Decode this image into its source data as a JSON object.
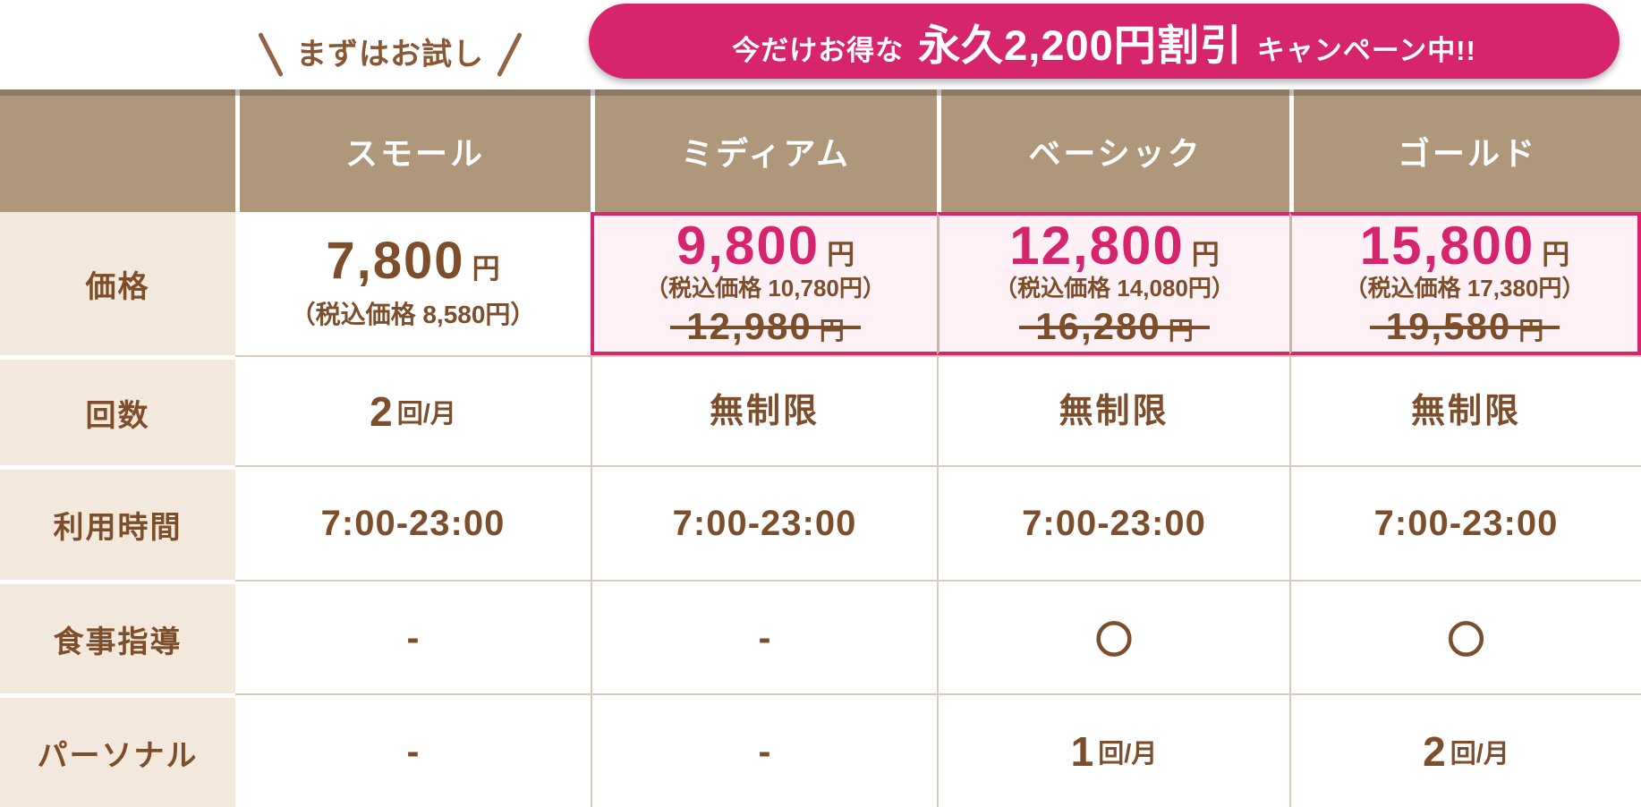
{
  "tryout": {
    "label": "まずはお試し"
  },
  "banner": {
    "prefix": "今だけお得な",
    "highlight": "永久2,200円割引",
    "suffix": "キャンペーン中!!"
  },
  "table": {
    "columns": [
      "スモール",
      "ミディアム",
      "ベーシック",
      "ゴールド"
    ],
    "row_labels": [
      "価格",
      "回数",
      "利用時間",
      "食事指導",
      "パーソナル"
    ],
    "plans": [
      {
        "name": "スモール",
        "highlighted": false,
        "price": "7,800",
        "price_unit": "円",
        "tax_note": "（税込価格 8,580円）",
        "count_num": "2",
        "count_unit": "回/月",
        "hours": "7:00-23:00",
        "meal": "-",
        "personal_num": "-",
        "personal_unit": ""
      },
      {
        "name": "ミディアム",
        "highlighted": true,
        "price": "9,800",
        "price_unit": "円",
        "tax_note": "（税込価格 10,780円）",
        "old_price": "12,980",
        "old_price_unit": "円",
        "count_num": "無制限",
        "count_unit": "",
        "hours": "7:00-23:00",
        "meal": "-",
        "personal_num": "-",
        "personal_unit": ""
      },
      {
        "name": "ベーシック",
        "highlighted": true,
        "price": "12,800",
        "price_unit": "円",
        "tax_note": "（税込価格 14,080円）",
        "old_price": "16,280",
        "old_price_unit": "円",
        "count_num": "無制限",
        "count_unit": "",
        "hours": "7:00-23:00",
        "meal": "〇",
        "personal_num": "1",
        "personal_unit": "回/月"
      },
      {
        "name": "ゴールド",
        "highlighted": true,
        "price": "15,800",
        "price_unit": "円",
        "tax_note": "（税込価格 17,380円）",
        "old_price": "19,580",
        "old_price_unit": "円",
        "count_num": "無制限",
        "count_unit": "",
        "hours": "7:00-23:00",
        "meal": "〇",
        "personal_num": "2",
        "personal_unit": "回/月"
      }
    ]
  },
  "chart_data": {
    "type": "table",
    "columns": [
      "",
      "スモール",
      "ミディアム",
      "ベーシック",
      "ゴールド"
    ],
    "rows": [
      [
        "価格",
        "7,800円（税込価格 8,580円）",
        "9,800円（税込価格 10,780円）旧価格 12,980円",
        "12,800円（税込価格 14,080円）旧価格 16,280円",
        "15,800円（税込価格 17,380円）旧価格 19,580円"
      ],
      [
        "回数",
        "2回/月",
        "無制限",
        "無制限",
        "無制限"
      ],
      [
        "利用時間",
        "7:00-23:00",
        "7:00-23:00",
        "7:00-23:00",
        "7:00-23:00"
      ],
      [
        "食事指導",
        "-",
        "-",
        "〇",
        "〇"
      ],
      [
        "パーソナル",
        "-",
        "-",
        "1回/月",
        "2回/月"
      ]
    ],
    "annotations": [
      "まずはお試し",
      "今だけお得な 永久2,200円割引 キャンペーン中!!"
    ],
    "highlighted_columns": [
      "ミディアム",
      "ベーシック",
      "ゴールド"
    ]
  },
  "colors": {
    "accent_pink": "#d7256d",
    "header_tan": "#ae977b",
    "label_cream": "#f2e8dc",
    "text_brown": "#7d4e2b",
    "highlight_bg": "#fdf1f5",
    "divider_tan": "#dacbb8"
  }
}
